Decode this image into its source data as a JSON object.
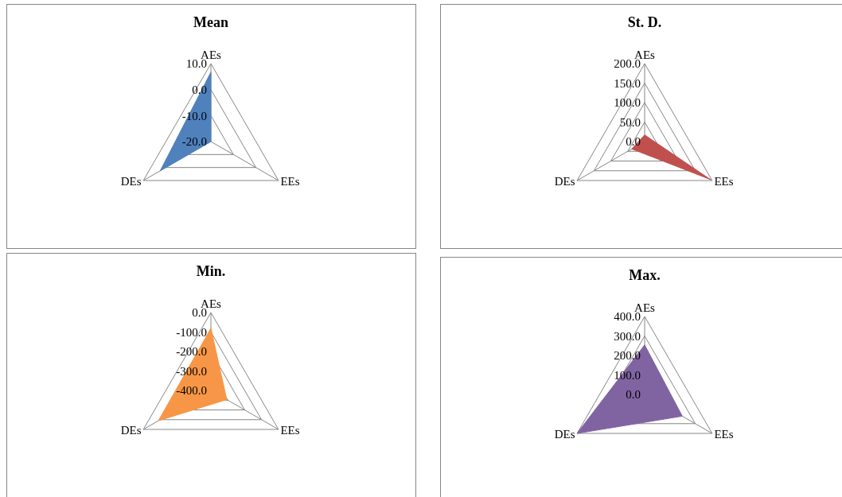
{
  "chart_data": [
    {
      "type": "radar",
      "title": "Mean",
      "categories": [
        "AEs",
        "EEs",
        "DEs"
      ],
      "series": [
        {
          "color": "#4f81bd",
          "values": [
            6.7,
            -20,
            2.5
          ]
        }
      ],
      "ylim": [
        -20,
        10
      ],
      "yticks": [
        {
          "value": -20,
          "label": "-20.0"
        },
        {
          "value": -10,
          "label": "-10.0"
        },
        {
          "value": 0,
          "label": "0.0"
        },
        {
          "value": 10,
          "label": "10.0"
        }
      ],
      "grid": true
    },
    {
      "type": "radar",
      "title": "St. D.",
      "categories": [
        "AEs",
        "EEs",
        "DEs"
      ],
      "series": [
        {
          "color": "#c0504d",
          "values": [
            17,
            195,
            38
          ]
        }
      ],
      "ylim": [
        0,
        200
      ],
      "yticks": [
        {
          "value": 0,
          "label": "0.0"
        },
        {
          "value": 50,
          "label": "50.0"
        },
        {
          "value": 100,
          "label": "100.0"
        },
        {
          "value": 150,
          "label": "150.0"
        },
        {
          "value": 200,
          "label": "200.0"
        }
      ],
      "grid": true
    },
    {
      "type": "radar",
      "title": "Min.",
      "categories": [
        "AEs",
        "EEs",
        "DEs"
      ],
      "series": [
        {
          "color": "#f79646",
          "values": [
            -81,
            -306,
            -89
          ]
        }
      ],
      "ylim": [
        -400,
        0
      ],
      "yticks": [
        {
          "value": -400,
          "label": "-400.0"
        },
        {
          "value": -300,
          "label": "-300.0"
        },
        {
          "value": -200,
          "label": "-200.0"
        },
        {
          "value": -100,
          "label": "-100.0"
        },
        {
          "value": 0,
          "label": "0.0"
        }
      ],
      "grid": true
    },
    {
      "type": "radar",
      "title": "Max.",
      "categories": [
        "AEs",
        "EEs",
        "DEs"
      ],
      "series": [
        {
          "color": "#8064a2",
          "values": [
            254,
            223,
            400
          ]
        }
      ],
      "ylim": [
        0,
        400
      ],
      "yticks": [
        {
          "value": 0,
          "label": "0.0"
        },
        {
          "value": 100,
          "label": "100.0"
        },
        {
          "value": 200,
          "label": "200.0"
        },
        {
          "value": 300,
          "label": "300.0"
        },
        {
          "value": 400,
          "label": "400.0"
        }
      ],
      "grid": true
    }
  ]
}
